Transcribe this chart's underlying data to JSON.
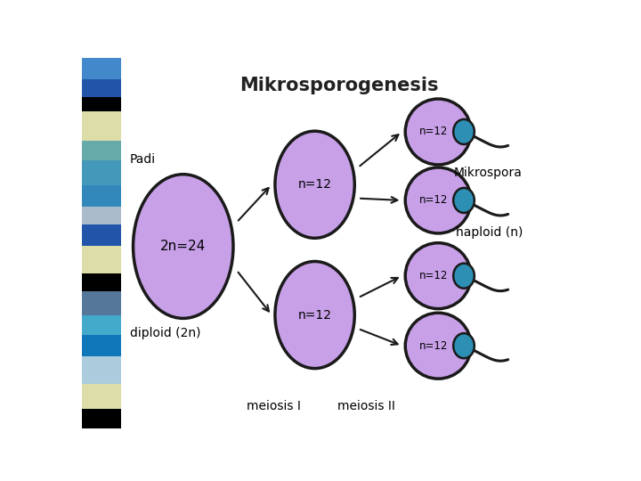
{
  "title": "Mikrosporogenesis",
  "bg_color": "#ffffff",
  "cell_color": "#c8a0e8",
  "cell_outline": "#1a1a1a",
  "sperm_color": "#2e8fb5",
  "label_large": "2n=24",
  "label_medium": "n=12",
  "label_padi": "Padi",
  "label_diploid": "diploid (2n)",
  "label_haploid": "haploid (n)",
  "label_mikrospora": "Mikrospora",
  "label_meiosis1": "meiosis I",
  "label_meiosis2": "meiosis II",
  "bar_colors": [
    "#4488cc",
    "#2255aa",
    "#000000",
    "#ddddaa",
    "#66aaaa",
    "#4499bb",
    "#3388bb",
    "#aabbcc",
    "#2255aa",
    "#ddddaa",
    "#000000",
    "#557799",
    "#44aacc",
    "#1177bb",
    "#aaccdd",
    "#ddddaa",
    "#000000"
  ],
  "bar_heights": [
    22,
    18,
    15,
    30,
    20,
    25,
    22,
    18,
    22,
    28,
    18,
    25,
    20,
    22,
    28,
    25,
    20
  ]
}
